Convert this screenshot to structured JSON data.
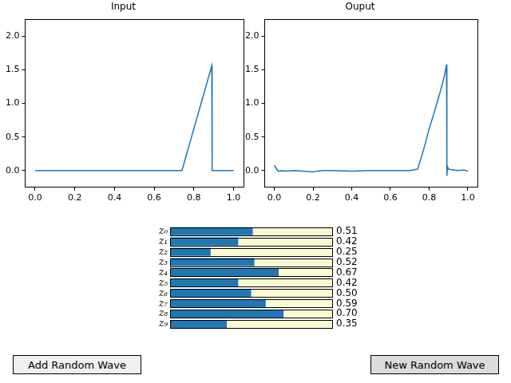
{
  "chart_data": [
    {
      "type": "line",
      "title": "Input",
      "color": "#1f77b4",
      "grid": false,
      "x": [
        0,
        0.74,
        0.89,
        0.892,
        1.0
      ],
      "values": [
        0,
        0,
        1.56,
        0,
        0
      ],
      "xlim": [
        -0.05,
        1.05
      ],
      "xticks": [
        {
          "value": 0,
          "label": "0.0"
        },
        {
          "value": 0.2,
          "label": "0.2"
        },
        {
          "value": 0.4,
          "label": "0.4"
        },
        {
          "value": 0.6,
          "label": "0.6"
        },
        {
          "value": 0.8,
          "label": "0.8"
        },
        {
          "value": 1,
          "label": "1.0"
        }
      ],
      "ylim": [
        -0.25,
        2.25
      ],
      "yticks": [
        {
          "value": 0,
          "label": "0.0"
        },
        {
          "value": 0.5,
          "label": "0.5"
        },
        {
          "value": 1,
          "label": "1.0"
        },
        {
          "value": 1.5,
          "label": "1.5"
        },
        {
          "value": 2,
          "label": "2.0"
        }
      ]
    },
    {
      "type": "line",
      "title": "Ouput",
      "color": "#1f77b4",
      "grid": false,
      "x": [
        0,
        0.01,
        0.02,
        0.04,
        0.06,
        0.1,
        0.15,
        0.2,
        0.22,
        0.25,
        0.3,
        0.4,
        0.5,
        0.6,
        0.7,
        0.74,
        0.76,
        0.78,
        0.8,
        0.83,
        0.86,
        0.88,
        0.89,
        0.891,
        0.893,
        0.895,
        0.9,
        0.95,
        0.98,
        1.0
      ],
      "values": [
        0.08,
        0.03,
        -0.01,
        0.0,
        -0.01,
        0.0,
        -0.01,
        -0.02,
        -0.01,
        0.0,
        0.0,
        -0.01,
        0.0,
        0.0,
        0.0,
        0.02,
        0.2,
        0.4,
        0.62,
        0.9,
        1.2,
        1.42,
        1.58,
        1.2,
        -0.08,
        0.06,
        0.02,
        0.0,
        0.01,
        -0.01
      ],
      "xlim": [
        -0.05,
        1.05
      ],
      "xticks": [
        {
          "value": 0,
          "label": "0.0"
        },
        {
          "value": 0.2,
          "label": "0.2"
        },
        {
          "value": 0.4,
          "label": "0.4"
        },
        {
          "value": 0.6,
          "label": "0.6"
        },
        {
          "value": 0.8,
          "label": "0.8"
        },
        {
          "value": 1,
          "label": "1.0"
        }
      ],
      "ylim": [
        -0.25,
        2.25
      ],
      "yticks": [
        {
          "value": 0,
          "label": "0.0"
        },
        {
          "value": 0.5,
          "label": "0.5"
        },
        {
          "value": 1,
          "label": "1.0"
        },
        {
          "value": 1.5,
          "label": "1.5"
        },
        {
          "value": 2,
          "label": "2.0"
        }
      ]
    },
    {
      "type": "bar",
      "orientation": "horizontal",
      "color": "#1f77b4",
      "tick_labels": "y",
      "data_labels": true,
      "categories": [
        "z₀",
        "z₁",
        "z₂",
        "z₃",
        "z₄",
        "z₅",
        "z₆",
        "z₇",
        "z₈",
        "z₉"
      ],
      "values": [
        0.51,
        0.42,
        0.25,
        0.52,
        0.67,
        0.42,
        0.5,
        0.59,
        0.7,
        0.35
      ],
      "value_labels": [
        "0.51",
        "0.42",
        "0.25",
        "0.52",
        "0.67",
        "0.42",
        "0.50",
        "0.59",
        "0.70",
        "0.35"
      ],
      "xlim": [
        0,
        1
      ]
    }
  ],
  "buttons": [
    "Add Random Wave",
    "New Random Wave"
  ]
}
